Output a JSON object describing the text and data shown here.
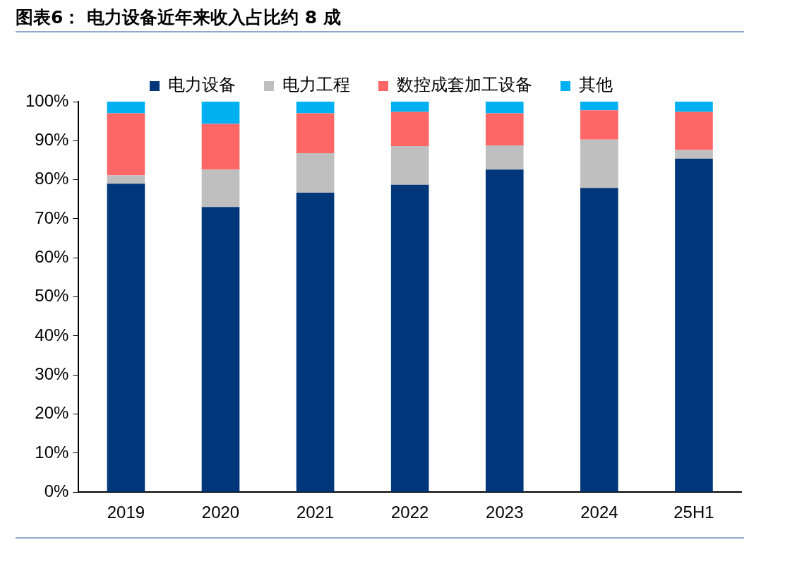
{
  "chart_data": {
    "type": "bar",
    "title": "图表6：  电力设备近年来收入占比约 8 成",
    "categories": [
      "2019",
      "2020",
      "2021",
      "2022",
      "2023",
      "2024",
      "25H1"
    ],
    "series": [
      {
        "name": "电力设备",
        "color": "#00367a",
        "values": [
          79.0,
          73.0,
          76.7,
          78.7,
          82.6,
          77.9,
          85.4
        ]
      },
      {
        "name": "电力工程",
        "color": "#bfbfbf",
        "values": [
          2.1,
          9.6,
          10.1,
          9.9,
          6.2,
          12.4,
          2.2
        ]
      },
      {
        "name": "数控成套加工设备",
        "color": "#ff6666",
        "values": [
          15.9,
          11.7,
          10.2,
          8.8,
          8.2,
          7.5,
          9.8
        ]
      },
      {
        "name": "其他",
        "color": "#00b0f0",
        "values": [
          3.0,
          5.7,
          3.0,
          2.6,
          3.0,
          2.2,
          2.6
        ]
      }
    ],
    "stacked": true,
    "ylim": [
      0,
      100
    ],
    "yticks": [
      {
        "value": 0,
        "label": "0%"
      },
      {
        "value": 10,
        "label": "10%"
      },
      {
        "value": 20,
        "label": "20%"
      },
      {
        "value": 30,
        "label": "30%"
      },
      {
        "value": 40,
        "label": "40%"
      },
      {
        "value": 50,
        "label": "50%"
      },
      {
        "value": 60,
        "label": "60%"
      },
      {
        "value": 70,
        "label": "70%"
      },
      {
        "value": 80,
        "label": "80%"
      },
      {
        "value": 90,
        "label": "90%"
      },
      {
        "value": 100,
        "label": "100%"
      }
    ],
    "grid": false,
    "legend": "top"
  }
}
